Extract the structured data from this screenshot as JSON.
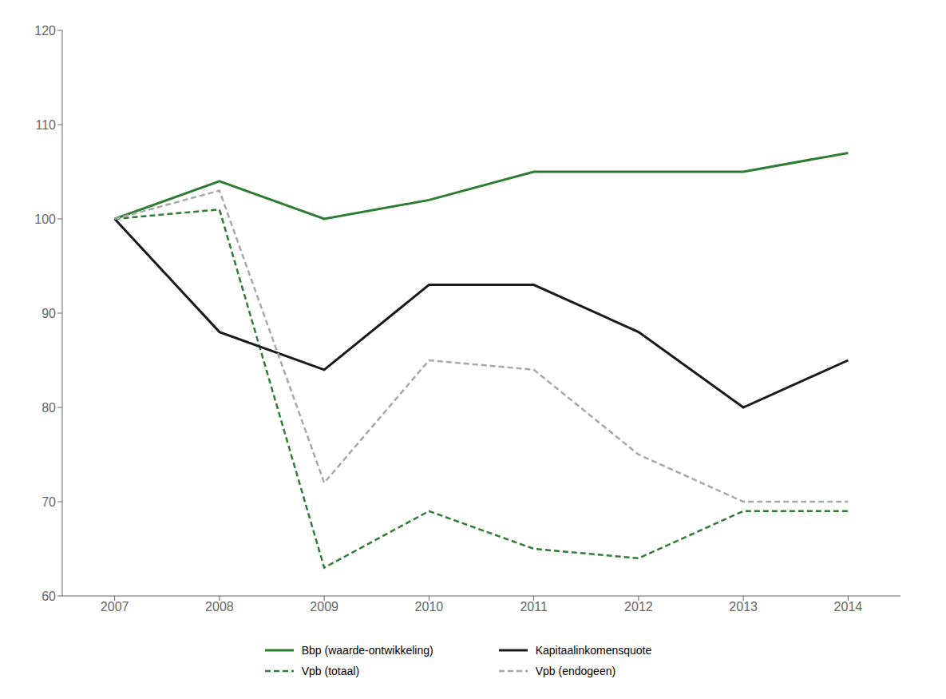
{
  "chart_data": {
    "type": "line",
    "x": [
      2007,
      2008,
      2009,
      2010,
      2011,
      2012,
      2013,
      2014
    ],
    "xlim": [
      2006.5,
      2014.5
    ],
    "xticks": [
      2007,
      2008,
      2009,
      2010,
      2011,
      2012,
      2013,
      2014
    ],
    "ylim": [
      60,
      120
    ],
    "yticks": [
      60,
      70,
      80,
      90,
      100,
      110,
      120
    ],
    "grid": false,
    "legend": "bottom",
    "series": [
      {
        "name": "Bbp (waarde-ontwikkeling)",
        "color": "#2e7d32",
        "line_style": "solid",
        "values": [
          100,
          104,
          100,
          102,
          105,
          105,
          105,
          107
        ]
      },
      {
        "name": "Vpb (totaal)",
        "color": "#2e7d32",
        "line_style": "dashed",
        "values": [
          100,
          101,
          63,
          69,
          65,
          64,
          69,
          69
        ]
      },
      {
        "name": "Kapitaalinkomensquote",
        "color": "#1a1a1a",
        "line_style": "solid",
        "values": [
          100,
          88,
          84,
          93,
          93,
          88,
          80,
          85
        ]
      },
      {
        "name": "Vpb (endogeen)",
        "color": "#a8a8a8",
        "line_style": "dashed",
        "values": [
          100,
          103,
          72,
          85,
          84,
          75,
          70,
          70
        ]
      }
    ]
  }
}
